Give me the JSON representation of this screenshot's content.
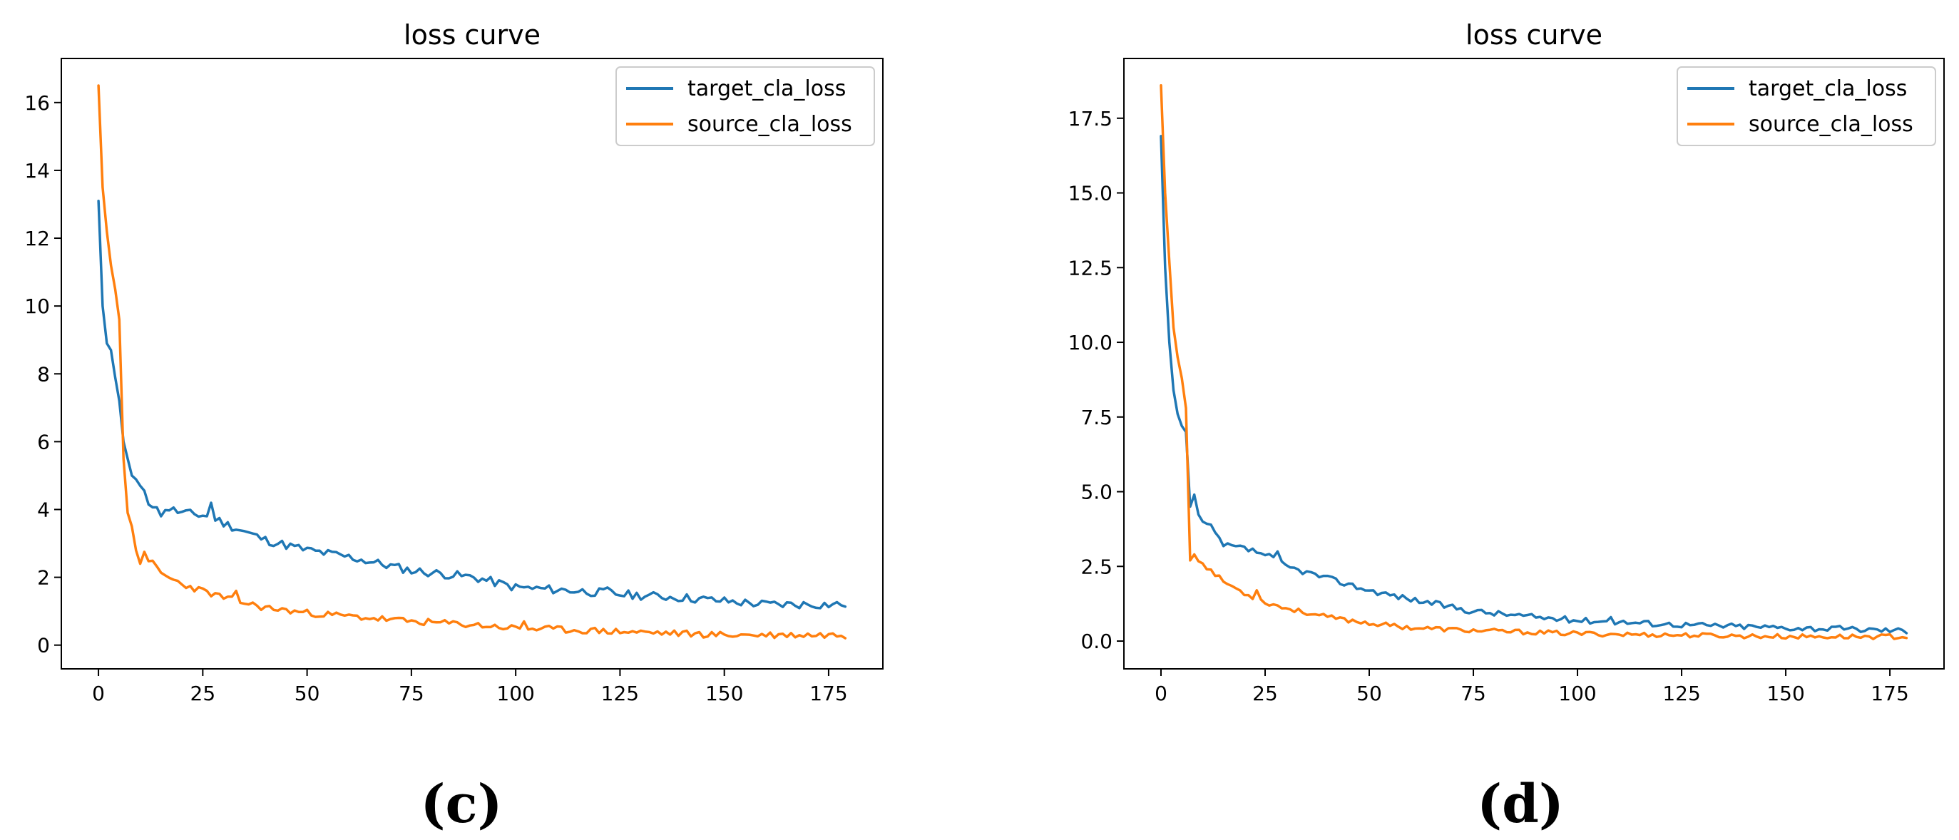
{
  "panel_labels": [
    "(c)",
    "(d)"
  ],
  "chart_data": [
    {
      "type": "line",
      "title": "loss curve",
      "xlabel": "",
      "ylabel": "",
      "xlim": [
        -8.9,
        188
      ],
      "ylim": [
        -0.7,
        17.3
      ],
      "xticks": [
        0,
        25,
        50,
        75,
        100,
        125,
        150,
        175
      ],
      "xtick_labels": [
        "0",
        "25",
        "50",
        "75",
        "100",
        "125",
        "150",
        "175"
      ],
      "yticks": [
        0,
        2,
        4,
        6,
        8,
        10,
        12,
        14,
        16
      ],
      "ytick_labels": [
        "0",
        "2",
        "4",
        "6",
        "8",
        "10",
        "12",
        "14",
        "16"
      ],
      "grid": false,
      "legend_position": "top-right",
      "n_points": 180,
      "series": [
        {
          "name": "target_cla_loss",
          "color": "#1f77b4",
          "keypoints": [
            [
              0,
              13.1
            ],
            [
              1,
              10.0
            ],
            [
              2,
              8.9
            ],
            [
              3,
              8.7
            ],
            [
              4,
              7.9
            ],
            [
              5,
              7.2
            ],
            [
              6,
              6.0
            ],
            [
              7,
              5.5
            ],
            [
              8,
              5.0
            ],
            [
              10,
              4.7
            ],
            [
              12,
              4.2
            ],
            [
              15,
              4.1
            ],
            [
              20,
              3.9
            ],
            [
              27,
              3.8
            ],
            [
              30,
              3.6
            ],
            [
              40,
              3.1
            ],
            [
              50,
              2.8
            ],
            [
              60,
              2.6
            ],
            [
              75,
              2.2
            ],
            [
              90,
              2.0
            ],
            [
              100,
              1.7
            ],
            [
              115,
              1.6
            ],
            [
              125,
              1.5
            ],
            [
              140,
              1.4
            ],
            [
              150,
              1.3
            ],
            [
              160,
              1.2
            ],
            [
              179,
              1.2
            ]
          ],
          "spikes": [
            [
              27,
              4.2
            ],
            [
              15,
              3.8
            ],
            [
              122,
              1.7
            ]
          ],
          "noise": 0.13,
          "seed": 11
        },
        {
          "name": "source_cla_loss",
          "color": "#ff7f0e",
          "keypoints": [
            [
              0,
              16.5
            ],
            [
              1,
              13.5
            ],
            [
              2,
              12.2
            ],
            [
              3,
              11.2
            ],
            [
              4,
              10.5
            ],
            [
              5,
              9.6
            ],
            [
              6,
              5.5
            ],
            [
              7,
              3.9
            ],
            [
              8,
              3.5
            ],
            [
              9,
              2.8
            ],
            [
              10,
              2.4
            ],
            [
              11,
              2.7
            ],
            [
              15,
              2.1
            ],
            [
              20,
              1.8
            ],
            [
              25,
              1.6
            ],
            [
              30,
              1.4
            ],
            [
              40,
              1.1
            ],
            [
              50,
              0.95
            ],
            [
              60,
              0.85
            ],
            [
              75,
              0.7
            ],
            [
              90,
              0.6
            ],
            [
              100,
              0.5
            ],
            [
              125,
              0.4
            ],
            [
              150,
              0.3
            ],
            [
              179,
              0.3
            ]
          ],
          "spikes": [
            [
              11,
              2.75
            ],
            [
              33,
              1.6
            ],
            [
              102,
              0.7
            ]
          ],
          "noise": 0.1,
          "seed": 23
        }
      ]
    },
    {
      "type": "line",
      "title": "loss curve",
      "xlabel": "",
      "ylabel": "",
      "xlim": [
        -8.9,
        188
      ],
      "ylim": [
        -0.93,
        19.5
      ],
      "xticks": [
        0,
        25,
        50,
        75,
        100,
        125,
        150,
        175
      ],
      "xtick_labels": [
        "0",
        "25",
        "50",
        "75",
        "100",
        "125",
        "150",
        "175"
      ],
      "yticks": [
        0,
        2.5,
        5,
        7.5,
        10,
        12.5,
        15,
        17.5
      ],
      "ytick_labels": [
        "0.0",
        "2.5",
        "5.0",
        "7.5",
        "10.0",
        "12.5",
        "15.0",
        "17.5"
      ],
      "grid": false,
      "legend_position": "top-right",
      "n_points": 180,
      "series": [
        {
          "name": "target_cla_loss",
          "color": "#1f77b4",
          "keypoints": [
            [
              0,
              16.9
            ],
            [
              1,
              12.5
            ],
            [
              2,
              10.0
            ],
            [
              3,
              8.4
            ],
            [
              4,
              7.6
            ],
            [
              5,
              7.2
            ],
            [
              6,
              7.0
            ],
            [
              7,
              4.5
            ],
            [
              8,
              4.4
            ],
            [
              10,
              4.0
            ],
            [
              12,
              3.8
            ],
            [
              15,
              3.2
            ],
            [
              20,
              3.1
            ],
            [
              25,
              2.9
            ],
            [
              30,
              2.5
            ],
            [
              40,
              2.1
            ],
            [
              50,
              1.7
            ],
            [
              60,
              1.4
            ],
            [
              75,
              1.0
            ],
            [
              90,
              0.8
            ],
            [
              100,
              0.7
            ],
            [
              125,
              0.55
            ],
            [
              150,
              0.45
            ],
            [
              165,
              0.4
            ],
            [
              179,
              0.35
            ]
          ],
          "spikes": [
            [
              8,
              4.9
            ],
            [
              28,
              3.0
            ],
            [
              108,
              0.8
            ]
          ],
          "noise": 0.1,
          "seed": 37
        },
        {
          "name": "source_cla_loss",
          "color": "#ff7f0e",
          "keypoints": [
            [
              0,
              18.6
            ],
            [
              1,
              15.0
            ],
            [
              2,
              12.7
            ],
            [
              3,
              10.5
            ],
            [
              4,
              9.5
            ],
            [
              5,
              8.8
            ],
            [
              6,
              7.8
            ],
            [
              7,
              2.7
            ],
            [
              8,
              2.8
            ],
            [
              10,
              2.6
            ],
            [
              15,
              2.0
            ],
            [
              20,
              1.6
            ],
            [
              25,
              1.3
            ],
            [
              30,
              1.1
            ],
            [
              40,
              0.8
            ],
            [
              50,
              0.6
            ],
            [
              60,
              0.45
            ],
            [
              75,
              0.35
            ],
            [
              100,
              0.25
            ],
            [
              125,
              0.2
            ],
            [
              150,
              0.15
            ],
            [
              179,
              0.15
            ]
          ],
          "spikes": [
            [
              8,
              2.9
            ],
            [
              23,
              1.7
            ]
          ],
          "noise": 0.08,
          "seed": 53
        }
      ]
    }
  ]
}
